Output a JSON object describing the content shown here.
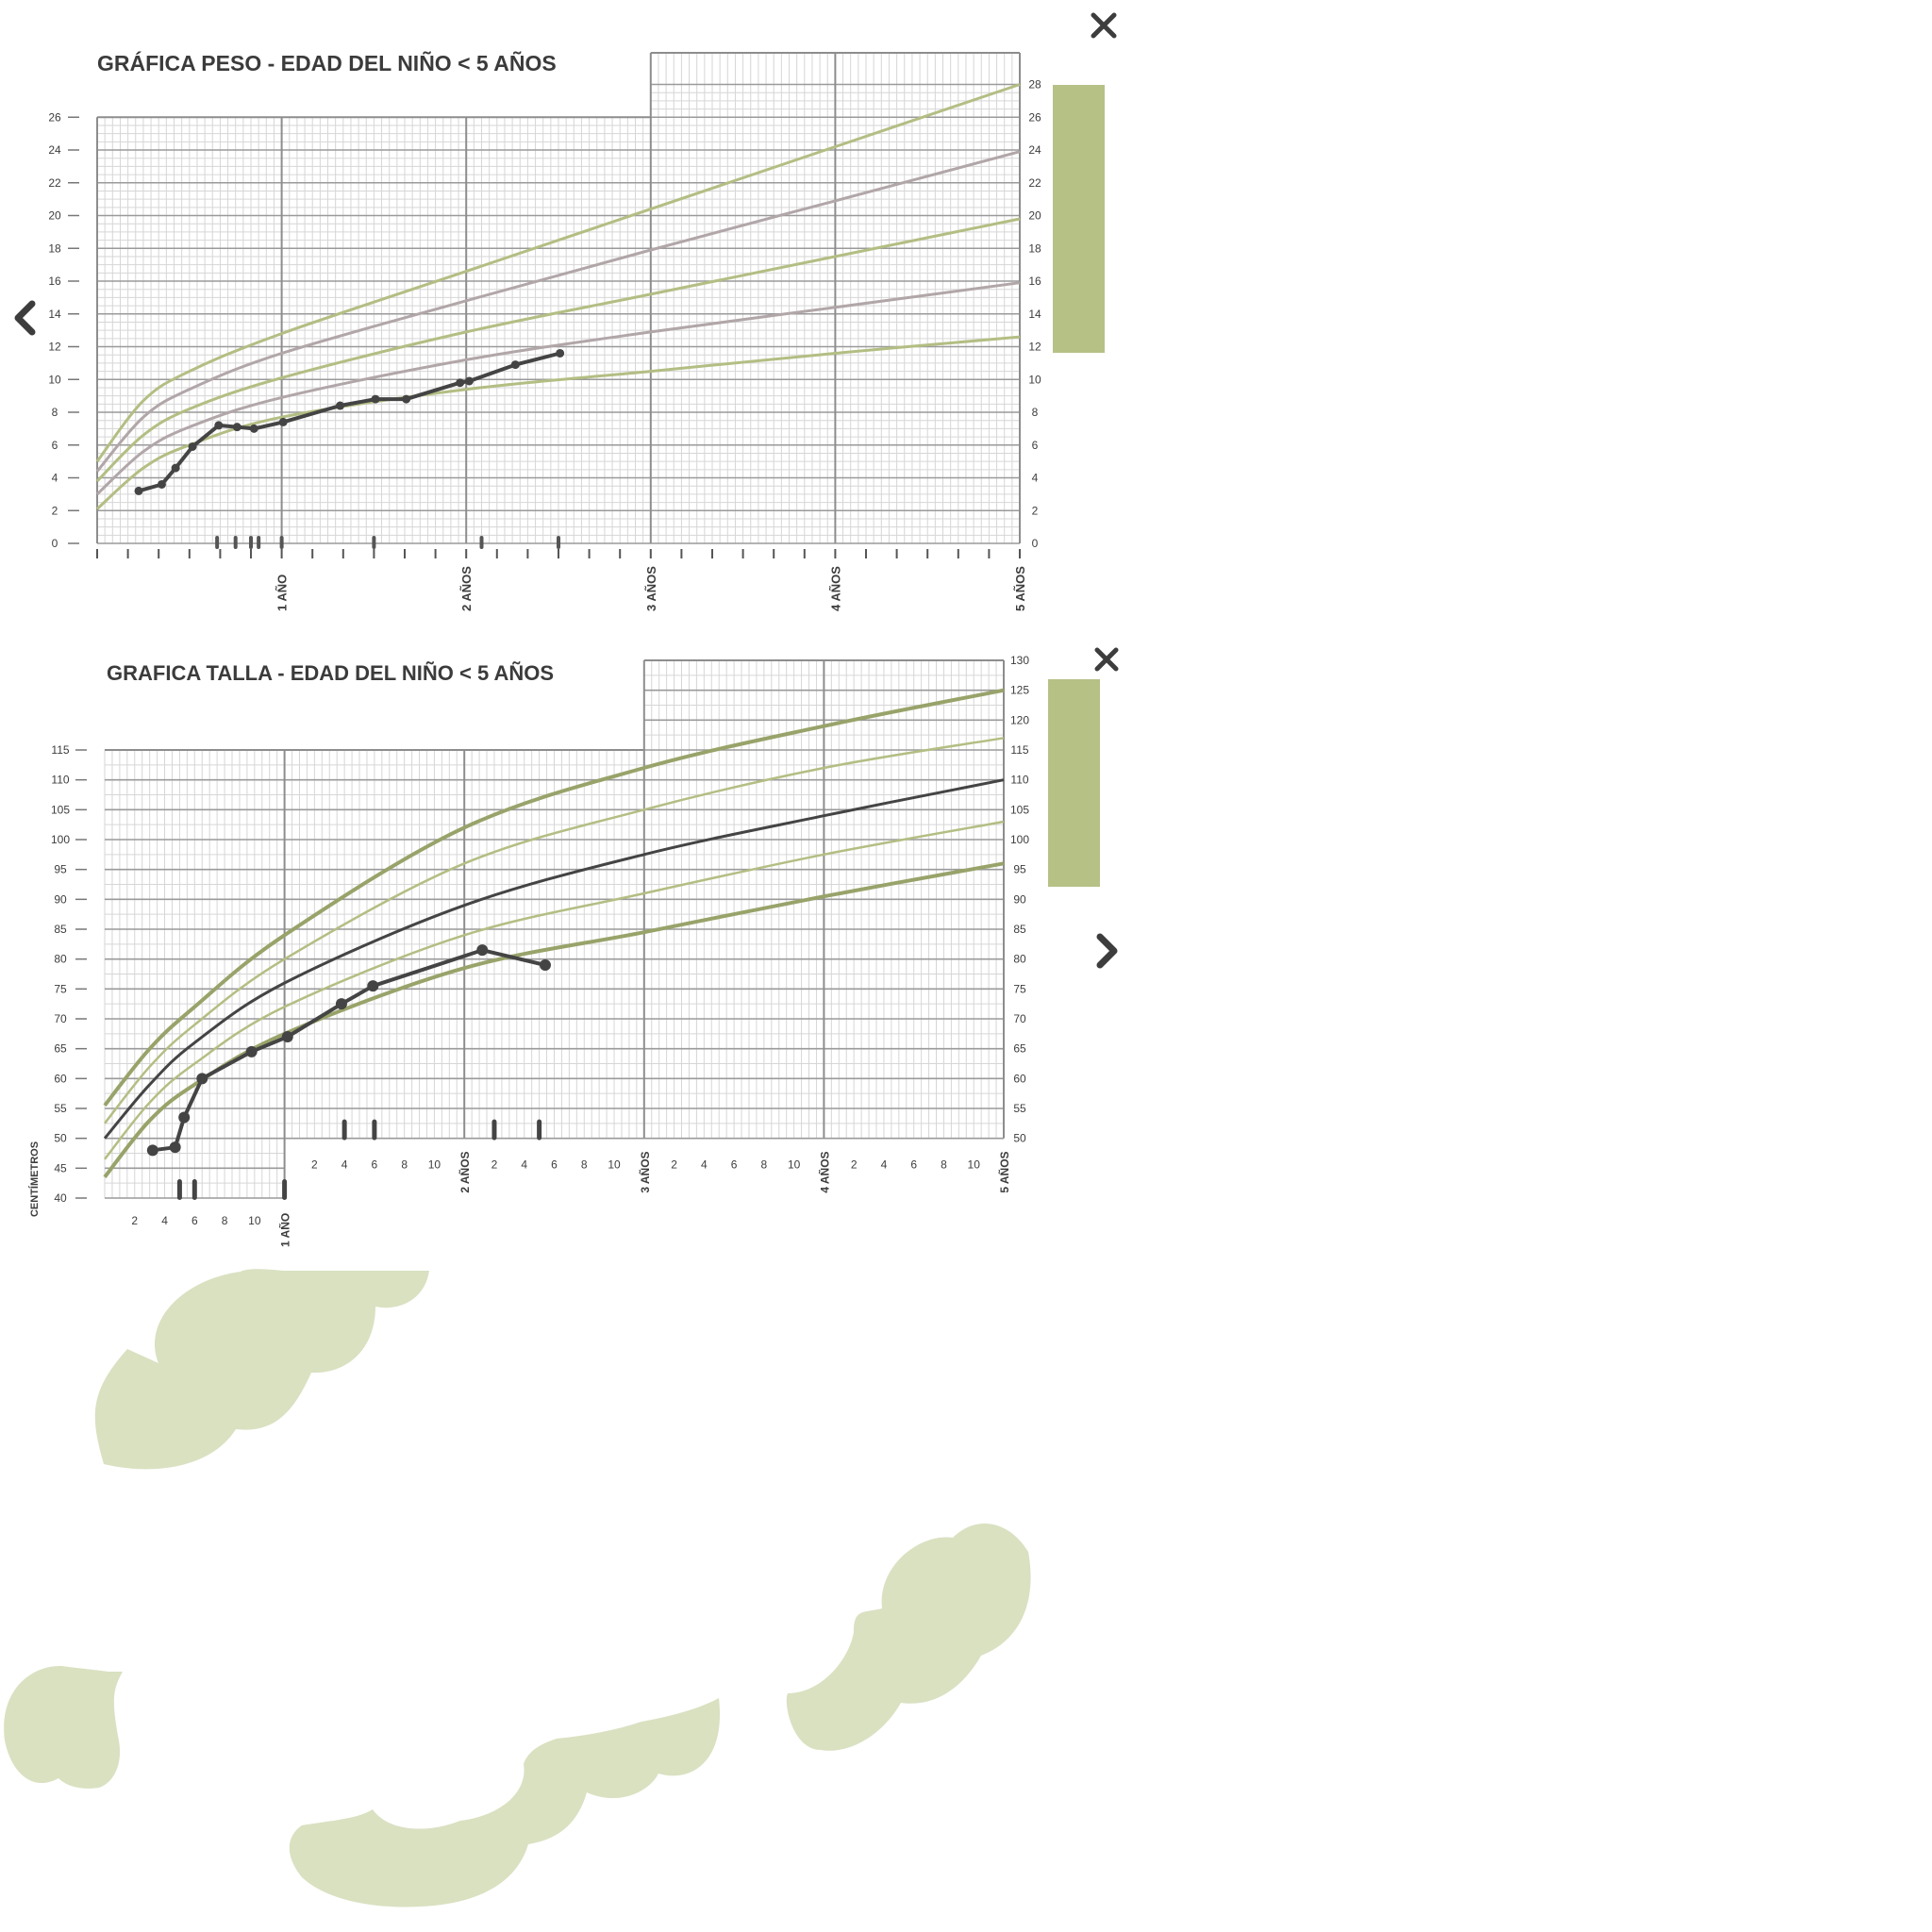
{
  "colors": {
    "green": "#b3be83",
    "green_dark": "#98a36a",
    "mauve": "#b1a6a8",
    "dark": "#444444",
    "grid_minor": "#d6d6d6",
    "grid_major": "#9a9a9a",
    "grid_year": "#8d8d8d",
    "panel": "#b6c186",
    "blob": "#d9e1c1"
  },
  "controls": {
    "close_icon_top": "close-icon",
    "close_icon_bottom": "close-icon",
    "prev_icon": "chevron-left-icon",
    "next_icon": "chevron-right-icon"
  },
  "chart_data": [
    {
      "type": "line",
      "title": "GRÁFICA PESO - EDAD DEL NIÑO < 5 AÑOS",
      "x_unit": "months",
      "x_range": [
        0,
        60
      ],
      "ylim": [
        0,
        28
      ],
      "y_ticks_left": [
        "0",
        "2",
        "4",
        "6",
        "8",
        "10",
        "12",
        "14",
        "16",
        "18",
        "20",
        "22",
        "24",
        "26"
      ],
      "y_ticks_right": [
        "0",
        "2",
        "4",
        "6",
        "8",
        "10",
        "12",
        "14",
        "16",
        "18",
        "20",
        "22",
        "24",
        "26",
        "28"
      ],
      "x_labels": [
        "1 AÑO",
        "2 AÑOS",
        "3 AÑOS",
        "4 AÑOS",
        "5 AÑOS"
      ],
      "reference_curves": [
        {
          "color": "green",
          "x": [
            0,
            3,
            6,
            12,
            24,
            36,
            48,
            60
          ],
          "y": [
            5.0,
            8.7,
            10.5,
            12.8,
            16.6,
            20.4,
            24.2,
            28.0
          ]
        },
        {
          "color": "mauve",
          "x": [
            0,
            3,
            6,
            12,
            24,
            36,
            48,
            60
          ],
          "y": [
            4.4,
            7.7,
            9.4,
            11.6,
            14.8,
            17.9,
            20.9,
            23.9
          ]
        },
        {
          "color": "green",
          "x": [
            0,
            3,
            6,
            12,
            24,
            36,
            48,
            60
          ],
          "y": [
            3.8,
            6.6,
            8.2,
            10.1,
            12.9,
            15.2,
            17.5,
            19.8
          ]
        },
        {
          "color": "mauve",
          "x": [
            0,
            3,
            6,
            12,
            24,
            36,
            48,
            60
          ],
          "y": [
            3.0,
            5.6,
            7.1,
            8.9,
            11.2,
            12.9,
            14.4,
            15.9
          ]
        },
        {
          "color": "green",
          "x": [
            0,
            3,
            6,
            12,
            24,
            36,
            48,
            60
          ],
          "y": [
            2.1,
            4.6,
            6.0,
            7.7,
            9.4,
            10.5,
            11.6,
            12.6
          ]
        }
      ],
      "series": [
        {
          "x": [
            2.7,
            4.2,
            5.1,
            6.2,
            7.9,
            9.1,
            10.2,
            12.1,
            15.8,
            18.1,
            20.1,
            23.6,
            24.2,
            27.2,
            30.1
          ],
          "y": [
            3.2,
            3.6,
            4.6,
            5.9,
            7.2,
            7.1,
            7.0,
            7.4,
            8.4,
            8.8,
            8.8,
            9.8,
            9.9,
            10.9,
            11.6
          ]
        }
      ],
      "x_marks": [
        7.8,
        9.0,
        10.0,
        10.5,
        12.0,
        18.0,
        25.0,
        30.0
      ]
    },
    {
      "type": "line",
      "title": "GRAFICA TALLA - EDAD DEL NIÑO < 5 AÑOS",
      "ylabel": "CENTÍMETROS",
      "x_unit": "months",
      "x_range": [
        0,
        60
      ],
      "ylim": [
        40,
        130
      ],
      "y_ticks_left": [
        "40",
        "45",
        "50",
        "55",
        "60",
        "65",
        "70",
        "75",
        "80",
        "85",
        "90",
        "95",
        "100",
        "105",
        "110",
        "115"
      ],
      "y_ticks_right": [
        "50",
        "55",
        "60",
        "65",
        "70",
        "75",
        "80",
        "85",
        "90",
        "95",
        "100",
        "105",
        "110",
        "115",
        "120",
        "125",
        "130"
      ],
      "x_minor_labels": [
        "2",
        "4",
        "6",
        "8",
        "10"
      ],
      "x_labels": [
        "1 AÑO",
        "2 AÑOS",
        "3 AÑOS",
        "4 AÑOS",
        "5 AÑOS"
      ],
      "reference_curves": [
        {
          "color": "green_dark",
          "width": 4,
          "x": [
            0,
            3,
            6,
            12,
            24,
            36,
            48,
            60
          ],
          "y": [
            55.5,
            65,
            72,
            84,
            102,
            112,
            119,
            125
          ]
        },
        {
          "color": "green",
          "width": 2.5,
          "x": [
            0,
            3,
            6,
            12,
            24,
            36,
            48,
            60
          ],
          "y": [
            52.5,
            62,
            69,
            80,
            96,
            105,
            112,
            117
          ]
        },
        {
          "color": "dark",
          "width": 3,
          "x": [
            0,
            3,
            6,
            12,
            24,
            36,
            48,
            60
          ],
          "y": [
            50,
            59,
            66,
            76,
            89,
            97.5,
            104,
            110
          ]
        },
        {
          "color": "green",
          "width": 2.5,
          "x": [
            0,
            3,
            6,
            12,
            24,
            36,
            48,
            60
          ],
          "y": [
            46.5,
            56,
            62.5,
            72,
            84,
            91,
            97.5,
            103
          ]
        },
        {
          "color": "green_dark",
          "width": 4,
          "x": [
            0,
            3,
            6,
            12,
            24,
            36,
            48,
            60
          ],
          "y": [
            43.5,
            53,
            59,
            67.5,
            78.5,
            84.5,
            90.5,
            96
          ]
        }
      ],
      "series": [
        {
          "x": [
            3.2,
            4.7,
            5.3,
            6.5,
            9.8,
            12.2,
            15.8,
            17.9,
            25.2,
            29.4
          ],
          "y": [
            48,
            48.5,
            53.5,
            60,
            64.5,
            67,
            72.5,
            75.5,
            81.5,
            79
          ]
        }
      ],
      "x_marks": [
        5.0,
        6.0,
        12.0,
        16.0,
        18.0,
        26.0,
        29.0
      ]
    }
  ]
}
